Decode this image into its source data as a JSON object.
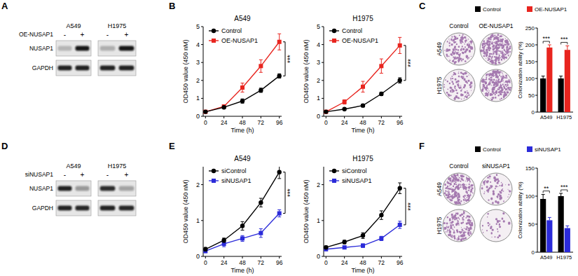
{
  "panel_labels": [
    "A",
    "B",
    "C",
    "D",
    "E",
    "F"
  ],
  "chart_data": [
    {
      "type": "line",
      "title": "A549",
      "x_label": "Time (h)",
      "y_label": "OD450 value (450 nM)",
      "x": [
        0,
        24,
        48,
        72,
        96
      ],
      "xlim": [
        -3,
        99
      ],
      "xticks": [
        0,
        24,
        48,
        72,
        96
      ],
      "ylim": [
        0,
        5
      ],
      "yticks": [
        0,
        1,
        2,
        3,
        4,
        5
      ],
      "legend": "top-left",
      "annotations": [
        "***"
      ],
      "series": [
        {
          "name": "Control",
          "color": "#000000",
          "marker": "circle",
          "values": [
            0.25,
            0.5,
            0.85,
            1.45,
            2.25
          ],
          "errors": [
            0.05,
            0.05,
            0.12,
            0.12,
            0.12
          ]
        },
        {
          "name": "OE-NUSAP1",
          "color": "#e8251f",
          "marker": "square",
          "values": [
            0.25,
            0.55,
            1.6,
            2.8,
            4.15
          ],
          "errors": [
            0.05,
            0.05,
            0.25,
            0.35,
            0.45
          ]
        }
      ]
    },
    {
      "type": "line",
      "title": "H1975",
      "x_label": "Time (h)",
      "y_label": "OD450 value (450 nM)",
      "x": [
        0,
        24,
        48,
        72,
        96
      ],
      "xlim": [
        -3,
        99
      ],
      "xticks": [
        0,
        24,
        48,
        72,
        96
      ],
      "ylim": [
        0,
        5
      ],
      "yticks": [
        0,
        1,
        2,
        3,
        4,
        5
      ],
      "legend": "top-left",
      "annotations": [
        "***"
      ],
      "series": [
        {
          "name": "Control",
          "color": "#000000",
          "marker": "circle",
          "values": [
            0.25,
            0.4,
            0.6,
            1.25,
            2.0
          ],
          "errors": [
            0.05,
            0.05,
            0.08,
            0.1,
            0.15
          ]
        },
        {
          "name": "OE-NUSAP1",
          "color": "#e8251f",
          "marker": "square",
          "values": [
            0.25,
            0.8,
            1.65,
            2.8,
            3.95
          ],
          "errors": [
            0.05,
            0.12,
            0.3,
            0.4,
            0.45
          ]
        }
      ]
    },
    {
      "type": "bar",
      "y_label": "Colonization ability (%)",
      "categories": [
        "A549",
        "H1975"
      ],
      "ylim": [
        0,
        250
      ],
      "yticks": [
        0,
        50,
        100,
        150,
        200,
        250
      ],
      "legend": "top",
      "annotations": [
        "***",
        "***"
      ],
      "series": [
        {
          "name": "Control",
          "color": "#000000",
          "values": [
            100,
            100
          ],
          "errors": [
            7,
            7
          ]
        },
        {
          "name": "OE-NUSAP1",
          "color": "#e8251f",
          "values": [
            192,
            185
          ],
          "errors": [
            8,
            12
          ]
        }
      ]
    },
    {
      "type": "line",
      "title": "A549",
      "x_label": "Time (h)",
      "y_label": "OD450 value (450 nM)",
      "x": [
        0,
        24,
        48,
        72,
        96
      ],
      "xlim": [
        -3,
        99
      ],
      "xticks": [
        0,
        24,
        48,
        72,
        96
      ],
      "ylim": [
        0,
        2.5
      ],
      "yticks": [
        0,
        1,
        2
      ],
      "legend": "top-left",
      "annotations": [
        "***"
      ],
      "series": [
        {
          "name": "siControl",
          "color": "#000000",
          "marker": "circle",
          "values": [
            0.2,
            0.45,
            0.85,
            1.5,
            2.35
          ],
          "errors": [
            0.05,
            0.06,
            0.12,
            0.12,
            0.18
          ]
        },
        {
          "name": "siNUSAP1",
          "color": "#2b2bd9",
          "marker": "square",
          "values": [
            0.15,
            0.35,
            0.5,
            0.65,
            1.2
          ],
          "errors": [
            0.05,
            0.08,
            0.08,
            0.12,
            0.1
          ]
        }
      ]
    },
    {
      "type": "line",
      "title": "H1975",
      "x_label": "Time (h)",
      "y_label": "OD450 value (450 nM)",
      "x": [
        0,
        24,
        48,
        72,
        96
      ],
      "xlim": [
        -3,
        99
      ],
      "xticks": [
        0,
        24,
        48,
        72,
        96
      ],
      "ylim": [
        0,
        2.5
      ],
      "yticks": [
        0,
        1,
        2
      ],
      "legend": "top-left",
      "annotations": [
        "***"
      ],
      "series": [
        {
          "name": "siControl",
          "color": "#000000",
          "marker": "circle",
          "values": [
            0.25,
            0.4,
            0.58,
            1.15,
            1.9
          ],
          "errors": [
            0.04,
            0.05,
            0.08,
            0.12,
            0.15
          ]
        },
        {
          "name": "siNUSAP1",
          "color": "#2b2bd9",
          "marker": "square",
          "values": [
            0.2,
            0.25,
            0.3,
            0.5,
            0.88
          ],
          "errors": [
            0.04,
            0.04,
            0.05,
            0.06,
            0.1
          ]
        }
      ]
    },
    {
      "type": "bar",
      "y_label": "Colonization ability (%)",
      "categories": [
        "A549",
        "H1975"
      ],
      "ylim": [
        0,
        150
      ],
      "yticks": [
        0,
        50,
        100,
        150
      ],
      "legend": "top",
      "annotations": [
        "**",
        "***"
      ],
      "series": [
        {
          "name": "Control",
          "color": "#000000",
          "values": [
            95,
            100
          ],
          "errors": [
            8,
            5
          ]
        },
        {
          "name": "siNUSAP1",
          "color": "#2b2bd9",
          "values": [
            57,
            43
          ],
          "errors": [
            5,
            4
          ]
        }
      ]
    }
  ],
  "blots": [
    {
      "treatment": "OE-NUSAP1",
      "cell_lines": [
        "A549",
        "H1975"
      ],
      "lanes": [
        "-",
        "+"
      ],
      "proteins": [
        "NUSAP1",
        "GAPDH"
      ]
    },
    {
      "treatment": "siNUSAP1",
      "cell_lines": [
        "A549",
        "H1975"
      ],
      "lanes": [
        "-",
        "+"
      ],
      "proteins": [
        "NUSAP1",
        "GAPDH"
      ]
    }
  ],
  "colony_images": [
    {
      "columns": [
        "Control",
        "OE-NUSAP1"
      ],
      "rows": [
        "A549",
        "H1975"
      ]
    },
    {
      "columns": [
        "Control",
        "siNUSAP1"
      ],
      "rows": [
        "A549",
        "H1975"
      ]
    }
  ]
}
